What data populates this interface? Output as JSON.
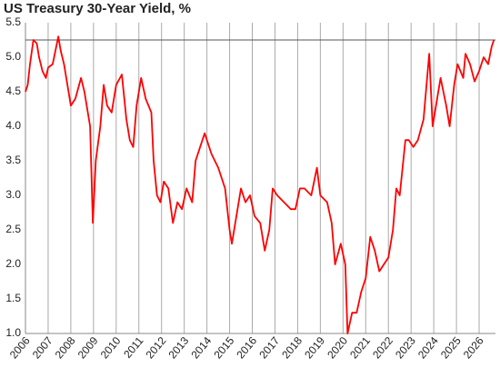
{
  "chart_data": {
    "type": "line",
    "title": "US Treasury 30-Year Yield, %",
    "x": [
      2006.0,
      2006.1,
      2006.2,
      2006.35,
      2006.5,
      2006.6,
      2006.75,
      2006.9,
      2007.0,
      2007.2,
      2007.45,
      2007.55,
      2007.7,
      2007.85,
      2008.0,
      2008.2,
      2008.45,
      2008.6,
      2008.75,
      2008.85,
      2008.97,
      2009.1,
      2009.3,
      2009.45,
      2009.6,
      2009.8,
      2010.0,
      2010.25,
      2010.45,
      2010.6,
      2010.75,
      2010.9,
      2011.1,
      2011.3,
      2011.55,
      2011.65,
      2011.8,
      2011.95,
      2012.1,
      2012.3,
      2012.5,
      2012.7,
      2012.9,
      2013.1,
      2013.35,
      2013.5,
      2013.7,
      2013.9,
      2014.0,
      2014.2,
      2014.5,
      2014.8,
      2015.0,
      2015.1,
      2015.4,
      2015.5,
      2015.7,
      2015.9,
      2016.1,
      2016.35,
      2016.55,
      2016.75,
      2016.9,
      2017.1,
      2017.4,
      2017.7,
      2017.9,
      2018.1,
      2018.3,
      2018.6,
      2018.85,
      2019.0,
      2019.3,
      2019.5,
      2019.65,
      2019.9,
      2020.1,
      2020.2,
      2020.4,
      2020.6,
      2020.8,
      2021.0,
      2021.2,
      2021.4,
      2021.6,
      2021.8,
      2022.0,
      2022.2,
      2022.35,
      2022.5,
      2022.75,
      2022.9,
      2023.1,
      2023.3,
      2023.55,
      2023.8,
      2023.95,
      2024.1,
      2024.3,
      2024.55,
      2024.7,
      2024.9,
      2025.05,
      2025.3,
      2025.4,
      2025.6,
      2025.8,
      2026.0,
      2026.2,
      2026.4,
      2026.55,
      2026.65
    ],
    "values": [
      4.5,
      4.6,
      4.9,
      5.25,
      5.2,
      5.0,
      4.8,
      4.7,
      4.85,
      4.9,
      5.3,
      5.1,
      4.9,
      4.6,
      4.3,
      4.4,
      4.7,
      4.5,
      4.2,
      4.0,
      2.6,
      3.5,
      4.0,
      4.6,
      4.3,
      4.2,
      4.6,
      4.75,
      4.1,
      3.8,
      3.7,
      4.3,
      4.7,
      4.4,
      4.2,
      3.5,
      3.0,
      2.9,
      3.2,
      3.1,
      2.6,
      2.9,
      2.8,
      3.1,
      2.9,
      3.5,
      3.7,
      3.9,
      3.8,
      3.6,
      3.4,
      3.1,
      2.5,
      2.3,
      2.9,
      3.1,
      2.9,
      3.0,
      2.7,
      2.6,
      2.2,
      2.5,
      3.1,
      3.0,
      2.9,
      2.8,
      2.8,
      3.1,
      3.1,
      3.0,
      3.4,
      3.0,
      2.9,
      2.6,
      2.0,
      2.3,
      2.0,
      1.0,
      1.3,
      1.3,
      1.6,
      1.8,
      2.4,
      2.2,
      1.9,
      2.0,
      2.1,
      2.5,
      3.1,
      3.0,
      3.8,
      3.8,
      3.7,
      3.8,
      4.1,
      5.05,
      4.0,
      4.3,
      4.7,
      4.3,
      4.0,
      4.6,
      4.9,
      4.7,
      5.05,
      4.9,
      4.65,
      4.8,
      5.0,
      4.9,
      5.15,
      5.25
    ],
    "color": "#ff0000",
    "reference_line": 5.25,
    "xlim": [
      2006,
      2026.72
    ],
    "xticks": [
      2006,
      2007,
      2008,
      2009,
      2010,
      2011,
      2012,
      2013,
      2014,
      2015,
      2016,
      2017,
      2018,
      2019,
      2020,
      2021,
      2022,
      2023,
      2024,
      2025,
      2026
    ],
    "ylim": [
      1,
      5.5
    ],
    "yticks": [
      {
        "value": 1,
        "label": "1.0"
      },
      1.5,
      {
        "value": 2,
        "label": "2.0"
      },
      2.5,
      {
        "value": 3,
        "label": "3.0"
      },
      3.5,
      {
        "value": 4,
        "label": "4.0"
      },
      4.5,
      {
        "value": 5,
        "label": "5.0"
      },
      5.5
    ],
    "grid": true
  }
}
